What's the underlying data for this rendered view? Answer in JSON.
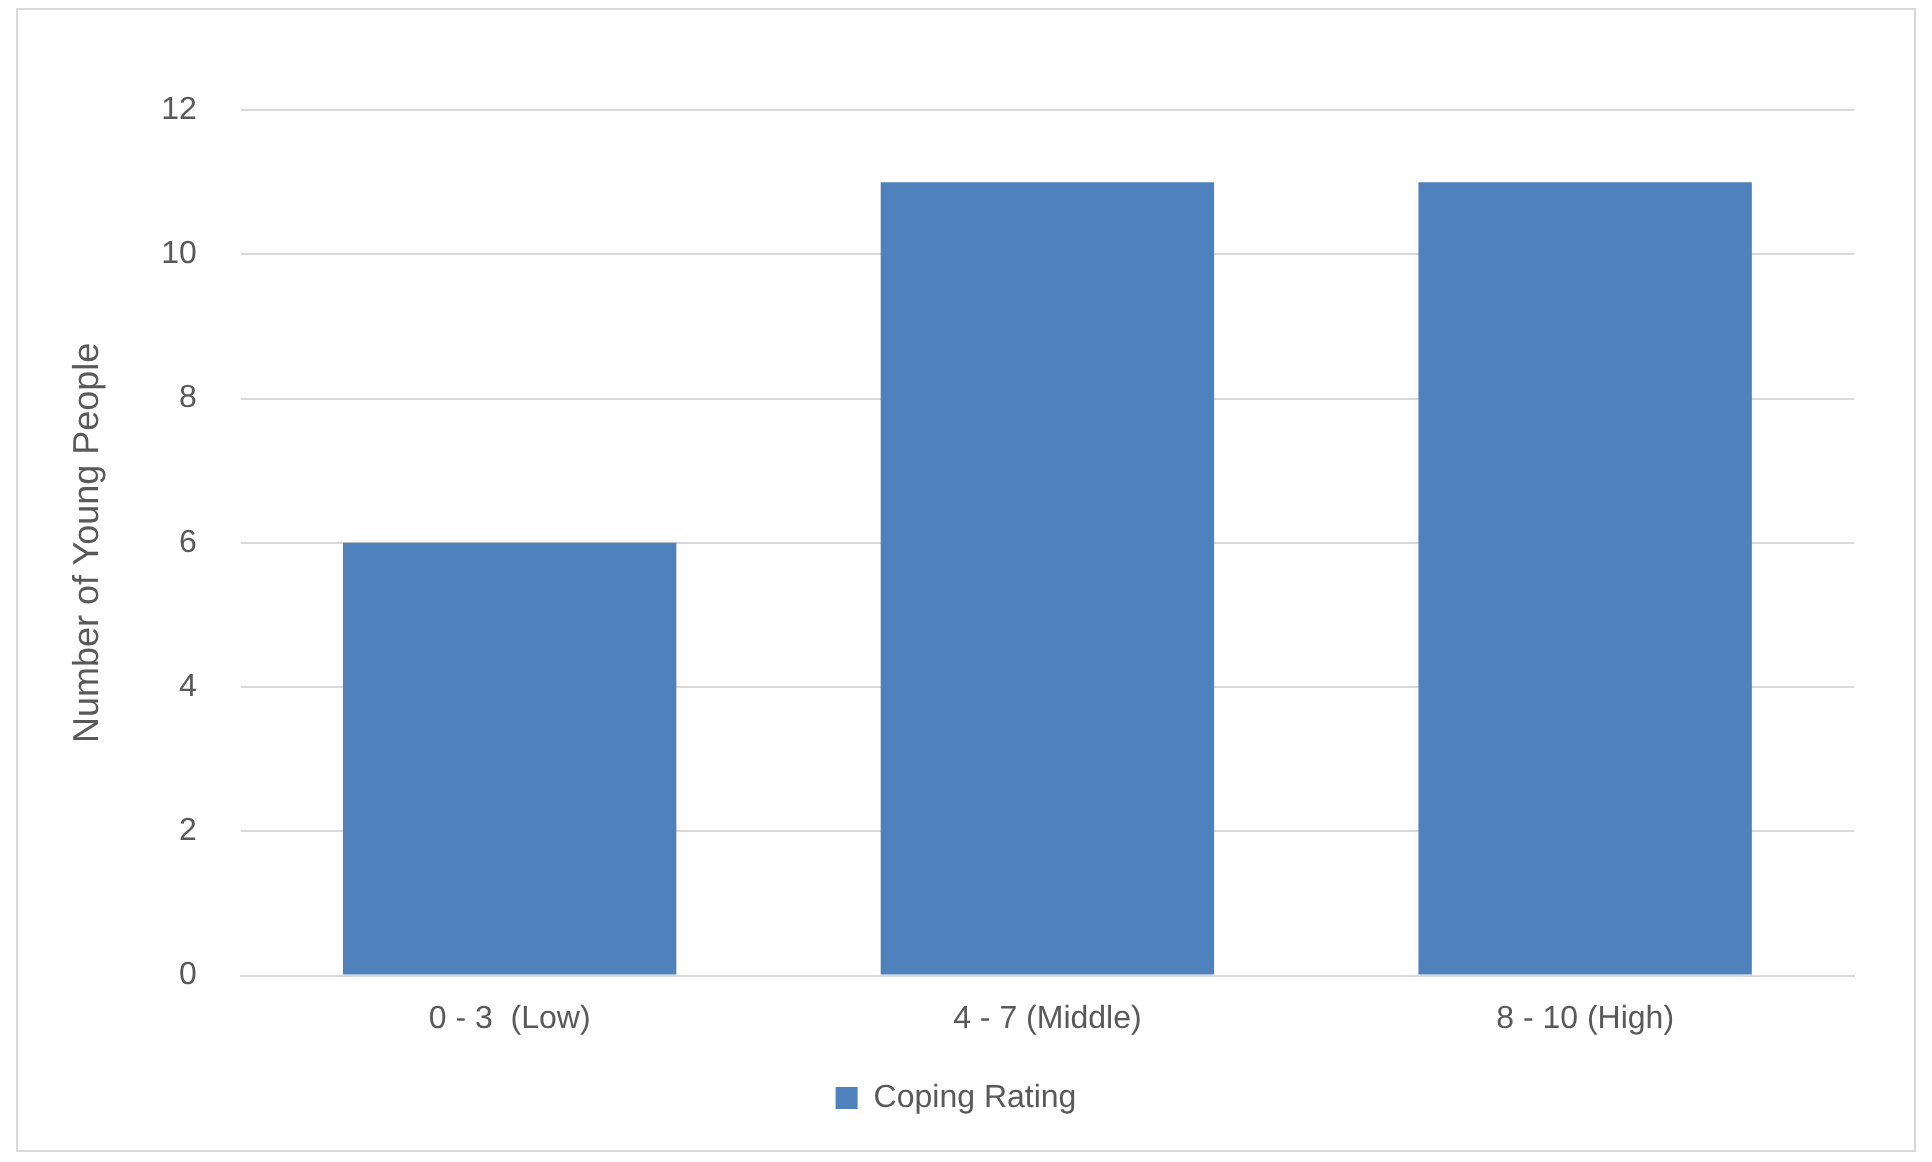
{
  "chart_data": {
    "type": "bar",
    "ylabel": "Number of Young People",
    "categories": [
      "0 - 3  (Low)",
      "4 - 7 (Middle)",
      "8 - 10 (High)"
    ],
    "series": [
      {
        "name": "Coping Rating",
        "color": "#4f81bd",
        "values": [
          6,
          11,
          11
        ]
      }
    ],
    "ylim": [
      0,
      12
    ],
    "yticks": [
      0,
      2,
      4,
      6,
      8,
      10,
      12
    ],
    "grid": "y",
    "legend": "bottom"
  }
}
